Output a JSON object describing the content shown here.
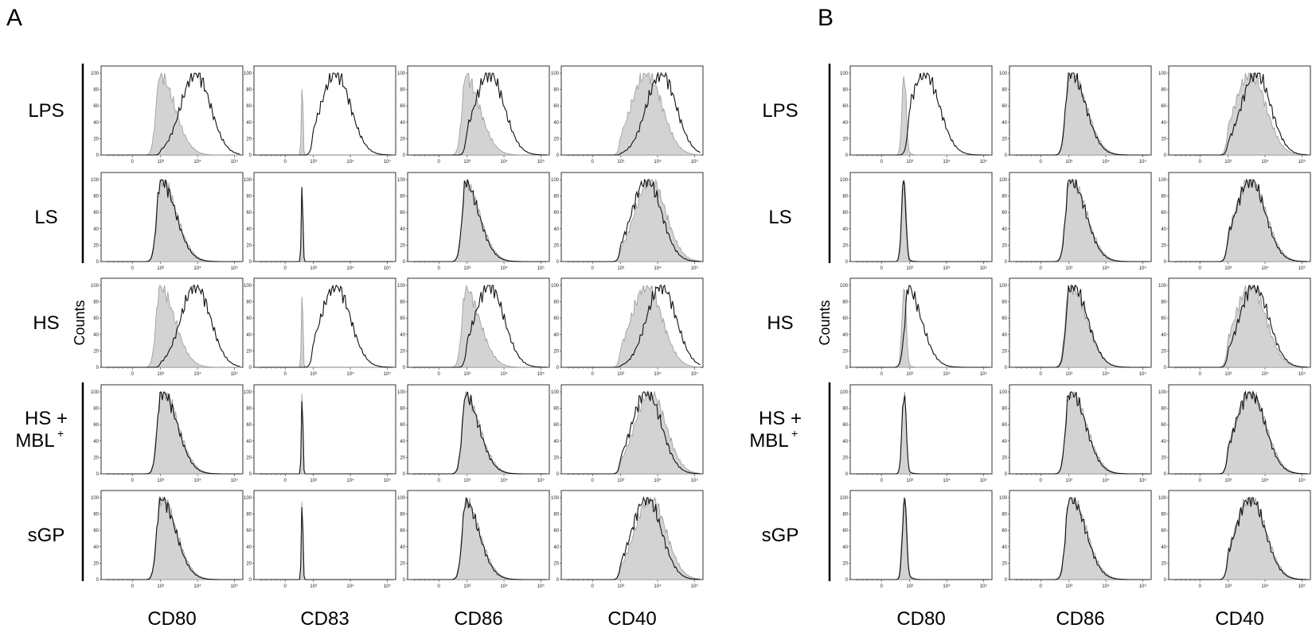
{
  "panels": [
    {
      "letter": "A",
      "rows": [
        "LPS",
        "LS",
        "HS",
        "HS +",
        "sGP"
      ],
      "row_sup": {
        "row": 3,
        "line2": "MBL",
        "sup": "+"
      },
      "columns": [
        "CD80",
        "CD83",
        "CD86",
        "CD40"
      ],
      "ylabel": "Counts"
    },
    {
      "letter": "B",
      "rows": [
        "LPS",
        "LS",
        "HS",
        "HS +",
        "sGP"
      ],
      "row_sup": {
        "row": 3,
        "line2": "MBL",
        "sup": "+"
      },
      "columns": [
        "CD80",
        "CD86",
        "CD40"
      ],
      "ylabel": "Counts"
    }
  ],
  "colors": {
    "filled": "#d3d3d3",
    "filled_stroke": "#9a9a9a",
    "open_line": "#111111"
  },
  "chart_data": [
    {
      "type": "area",
      "panel": "A",
      "title": "",
      "xlabel": "",
      "ylabel": "Counts",
      "xscale": "biexponential",
      "x_ticks": [
        "0",
        "10³",
        "10⁴",
        "10⁵"
      ],
      "ylim": [
        0,
        100
      ],
      "y_ticks": [
        "0",
        "20",
        "40",
        "60",
        "80",
        "100"
      ],
      "rows": [
        "LPS",
        "LS",
        "HS",
        "HS + MBL+",
        "sGP"
      ],
      "columns": [
        "CD80",
        "CD83",
        "CD86",
        "CD40"
      ],
      "series": [
        {
          "name": "filled",
          "peaks_log10": [
            [
              2.95,
              1.8,
              2.9,
              3.7
            ],
            [
              3.0,
              1.8,
              2.9,
              3.8
            ],
            [
              2.95,
              1.8,
              2.9,
              3.7
            ],
            [
              3.05,
              1.8,
              2.9,
              3.8
            ],
            [
              3.0,
              1.8,
              2.9,
              3.8
            ]
          ]
        },
        {
          "name": "open",
          "peaks_log10": [
            [
              3.95,
              3.6,
              3.6,
              4.1
            ],
            [
              3.0,
              1.8,
              2.9,
              3.7
            ],
            [
              3.95,
              3.6,
              3.6,
              4.1
            ],
            [
              3.05,
              1.8,
              2.9,
              3.7
            ],
            [
              3.0,
              1.8,
              2.9,
              3.7
            ]
          ]
        }
      ]
    },
    {
      "type": "area",
      "panel": "B",
      "title": "",
      "xlabel": "",
      "ylabel": "Counts",
      "xscale": "biexponential",
      "x_ticks": [
        "0",
        "10³",
        "10⁴",
        "10⁵"
      ],
      "ylim": [
        0,
        100
      ],
      "y_ticks": [
        "0",
        "20",
        "40",
        "60",
        "80",
        "100"
      ],
      "rows": [
        "LPS",
        "LS",
        "HS",
        "HS + MBL+",
        "sGP"
      ],
      "columns": [
        "CD80",
        "CD86",
        "CD40"
      ],
      "series": [
        {
          "name": "filled",
          "peaks_log10": [
            [
              2.4,
              3.05,
              3.6
            ],
            [
              2.4,
              3.05,
              3.6
            ],
            [
              2.4,
              3.05,
              3.6
            ],
            [
              2.4,
              3.05,
              3.6
            ],
            [
              2.4,
              3.05,
              3.6
            ]
          ]
        },
        {
          "name": "open",
          "peaks_log10": [
            [
              3.4,
              3.05,
              3.75
            ],
            [
              2.35,
              3.05,
              3.6
            ],
            [
              2.9,
              3.1,
              3.7
            ],
            [
              2.4,
              3.05,
              3.6
            ],
            [
              2.45,
              3.05,
              3.6
            ]
          ]
        }
      ]
    }
  ]
}
